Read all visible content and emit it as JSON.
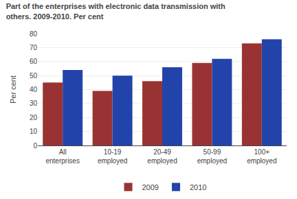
{
  "chart_data": {
    "type": "bar",
    "title": "Part of the enterprises with electronic data transmission with\nothers. 2009-2010. Per cent",
    "ylabel": "Per cent",
    "categories": [
      "All\nenterprises",
      "10-19\nemployed",
      "20-49\nemployed",
      "50-99\nemployed",
      "100+\nemployed"
    ],
    "series": [
      {
        "name": "2009",
        "color": "#993333",
        "values": [
          45,
          39,
          46,
          59,
          73
        ]
      },
      {
        "name": "2010",
        "color": "#2244AA",
        "values": [
          54,
          50,
          56,
          62,
          76
        ]
      }
    ],
    "ylim": [
      0,
      80
    ],
    "yticks": [
      0,
      10,
      20,
      30,
      40,
      50,
      60,
      70,
      80
    ],
    "grid": true,
    "legend": "bottom"
  }
}
